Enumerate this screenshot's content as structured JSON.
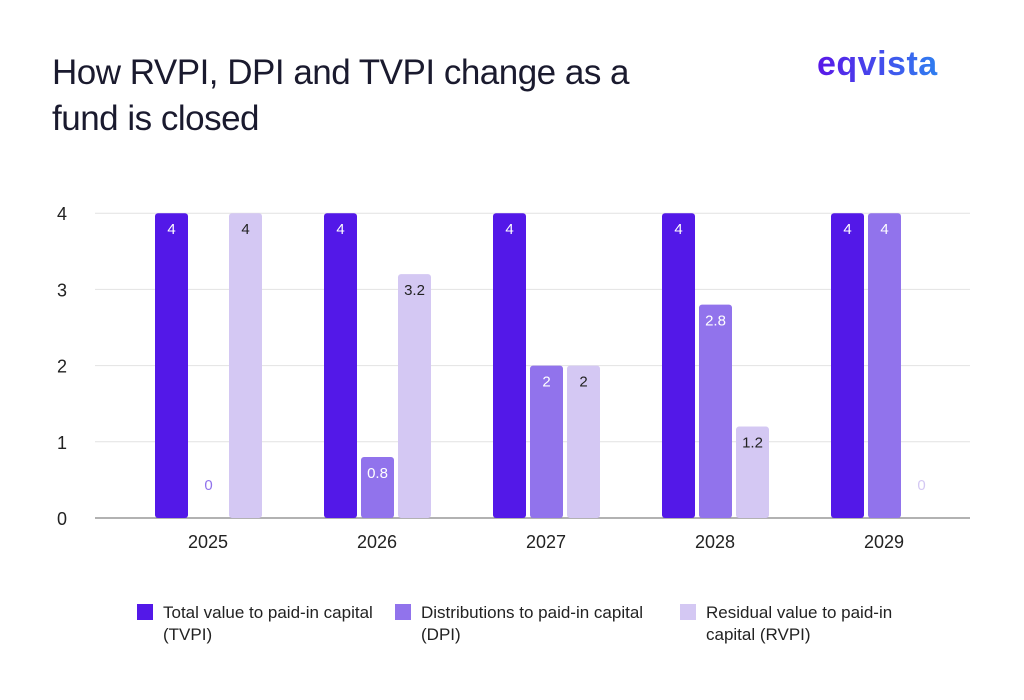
{
  "title": "How RVPI, DPI and TVPI change as a fund is closed",
  "logo": "eqvista",
  "chart_data": {
    "type": "bar",
    "categories": [
      "2025",
      "2026",
      "2027",
      "2028",
      "2029"
    ],
    "ylim": [
      0,
      4
    ],
    "yticks": [
      0,
      1,
      2,
      3,
      4
    ],
    "grid": true,
    "legend_placement": "bottom",
    "series": [
      {
        "name": "Total value to paid-in capital (TVPI)",
        "color": "#5318e8",
        "label_color": "#ffffff",
        "values": [
          4,
          4,
          4,
          4,
          4
        ]
      },
      {
        "name": "Distributions to paid-in capital (DPI)",
        "color": "#9173ec",
        "label_color": "#ffffff",
        "values": [
          0,
          0.8,
          2,
          2.8,
          4
        ]
      },
      {
        "name": "Residual value to paid-in capital (RVPI)",
        "color": "#d4c8f3",
        "label_color": "#222222",
        "values": [
          4,
          3.2,
          2,
          1.2,
          0
        ]
      }
    ]
  }
}
